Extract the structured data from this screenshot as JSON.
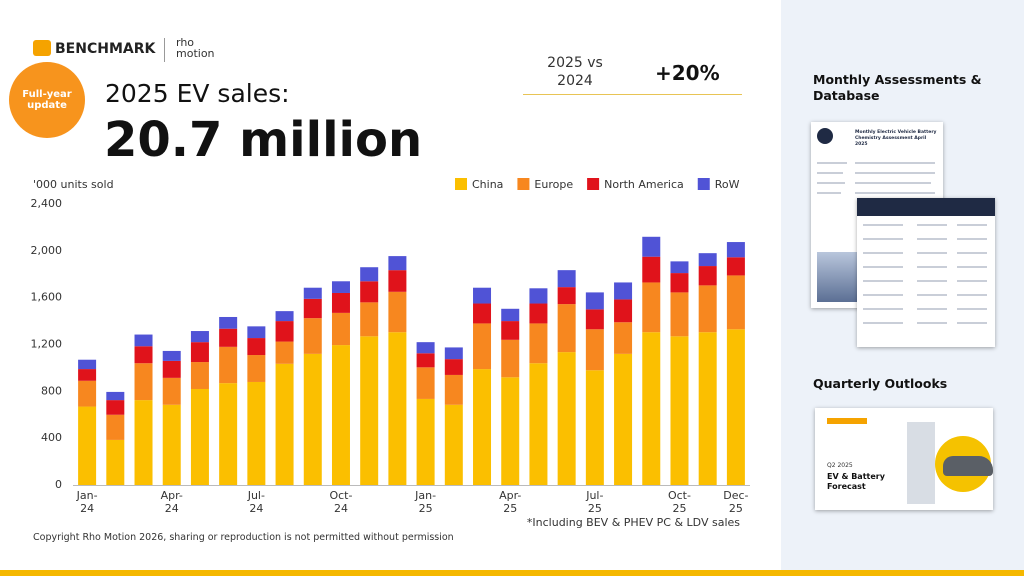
{
  "header": {
    "logo": "BENCHMARK",
    "partner": "rho\nmotion",
    "badge": "Full-year\nupdate",
    "title": "2025 EV sales:",
    "headline": "20.7 million",
    "comparison_label": "2025 vs\n2024",
    "comparison_value": "+20%"
  },
  "chart_data": {
    "type": "bar",
    "stacked": true,
    "y_label": "'000 units sold",
    "note": "*Including BEV & PHEV PC & LDV sales",
    "categories": [
      "Jan-\n24",
      null,
      null,
      "Apr-\n24",
      null,
      null,
      "Jul-\n24",
      null,
      null,
      "Oct-\n24",
      null,
      null,
      "Jan-\n25",
      null,
      null,
      "Apr-\n25",
      null,
      null,
      "Jul-\n25",
      null,
      null,
      "Oct-\n25",
      null,
      "Dec-\n25"
    ],
    "series": [
      {
        "name": "China",
        "color": "#fbbf00",
        "values": [
          670,
          385,
          725,
          685,
          820,
          870,
          880,
          1035,
          1120,
          1195,
          1270,
          1305,
          735,
          685,
          990,
          920,
          1040,
          1135,
          980,
          1120,
          1305,
          1270,
          1305,
          1330
        ]
      },
      {
        "name": "Europe",
        "color": "#f7871f",
        "values": [
          220,
          215,
          315,
          230,
          230,
          310,
          230,
          190,
          305,
          275,
          290,
          345,
          270,
          255,
          390,
          320,
          340,
          410,
          350,
          270,
          425,
          375,
          400,
          460
        ]
      },
      {
        "name": "North America",
        "color": "#e0131b",
        "values": [
          100,
          125,
          145,
          145,
          170,
          155,
          145,
          175,
          165,
          170,
          180,
          185,
          120,
          135,
          170,
          160,
          170,
          145,
          170,
          195,
          220,
          165,
          165,
          155
        ]
      },
      {
        "name": "RoW",
        "color": "#5053d6",
        "values": [
          80,
          70,
          100,
          85,
          95,
          100,
          100,
          85,
          95,
          100,
          120,
          120,
          95,
          100,
          135,
          105,
          130,
          145,
          145,
          145,
          170,
          100,
          110,
          130
        ]
      }
    ],
    "ylim": [
      0,
      2400
    ],
    "yticks": [
      0,
      400,
      800,
      {
        "value": 1200,
        "label": "1,200"
      },
      {
        "value": 1600,
        "label": "1,600"
      },
      {
        "value": 2000,
        "label": "2,000"
      },
      {
        "value": 2400,
        "label": "2,400"
      }
    ],
    "grid": false,
    "legend": "top-right"
  },
  "footer": "Copyright Rho Motion 2026, sharing or reproduction is not permitted without permission",
  "sidebar": {
    "sections": [
      {
        "title": "Monthly Assessments &\nDatabase",
        "thumbnail_title": "Monthly Electric Vehicle Battery Chemistry Assessment April 2025"
      },
      {
        "title": "Quarterly Outlooks",
        "thumbnail_date": "Q2 2025",
        "thumbnail_title": "EV & Battery\nForecast"
      }
    ]
  }
}
